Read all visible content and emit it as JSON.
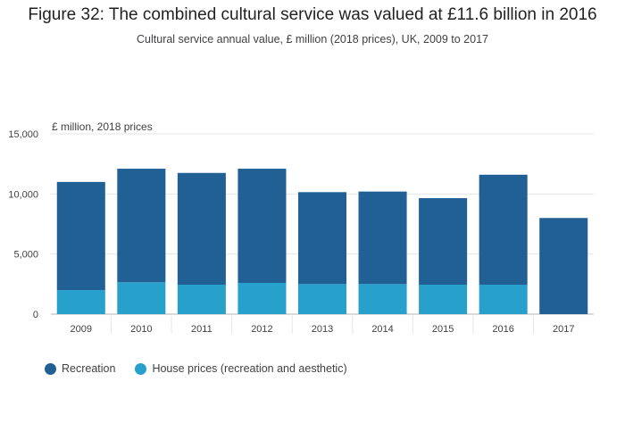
{
  "title": "Figure 32: The combined cultural service was valued at £11.6 billion in 2016",
  "subtitle": "Cultural service annual value, £ million (2018 prices), UK, 2009 to 2017",
  "chart_data": {
    "type": "bar",
    "stacked": true,
    "title": "Figure 32: The combined cultural service was valued at £11.6 billion in 2016",
    "subtitle": "Cultural service annual value, £ million (2018 prices), UK, 2009 to 2017",
    "ylabel": "£ million, 2018 prices",
    "xlabel": "",
    "ylim": [
      0,
      15000
    ],
    "yticks": [
      0,
      5000,
      10000,
      15000
    ],
    "ytick_labels": [
      "0",
      "5,000",
      "10,000",
      "15,000"
    ],
    "grid": true,
    "legend_position": "bottom-left",
    "categories": [
      "2009",
      "2010",
      "2011",
      "2012",
      "2013",
      "2014",
      "2015",
      "2016",
      "2017"
    ],
    "series": [
      {
        "name": "House prices (recreation and aesthetic)",
        "color": "#27a0cc",
        "values": [
          2000,
          2650,
          2450,
          2600,
          2500,
          2500,
          2450,
          2450,
          0
        ]
      },
      {
        "name": "Recreation",
        "color": "#206095",
        "values": [
          9000,
          9450,
          9300,
          9500,
          7650,
          7700,
          7200,
          9150,
          8000
        ]
      }
    ]
  },
  "legend": [
    {
      "label": "Recreation",
      "color": "#206095"
    },
    {
      "label": "House prices (recreation and aesthetic)",
      "color": "#27a0cc"
    }
  ]
}
